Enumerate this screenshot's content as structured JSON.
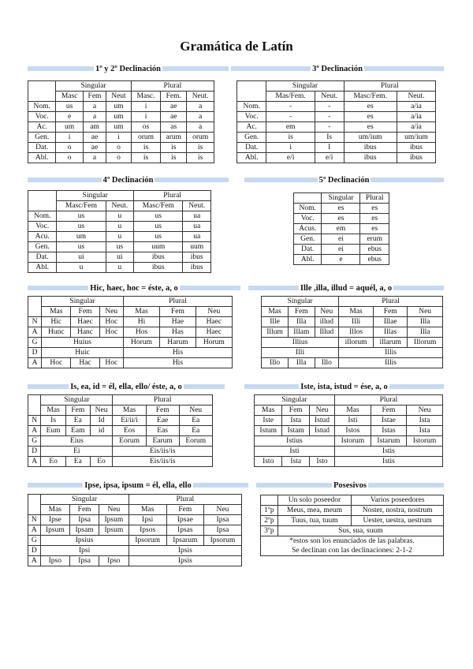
{
  "title": "Gramática de Latín",
  "header_bar_color": "#c6d9f1",
  "sections": [
    {
      "id": "decl-1-2",
      "heading": "1º y 2º Declinación",
      "rows": [
        [
          {
            "t": "",
            "rs": 2
          },
          {
            "t": "Singular",
            "span": 3
          },
          {
            "t": "Plural",
            "span": 3
          }
        ],
        [
          "Masc",
          "Fem",
          "Neut",
          "Masc.",
          "Fem.",
          "Neut."
        ],
        [
          "Nom.",
          "us",
          "a",
          "um",
          "i",
          "ae",
          "a"
        ],
        [
          "Voc.",
          "e",
          "a",
          "um",
          "i",
          "ae",
          "a"
        ],
        [
          "Ac.",
          "um",
          "am",
          "um",
          "os",
          "as",
          "a"
        ],
        [
          "Gen.",
          "i",
          "ae",
          "i",
          "orum",
          "arum",
          "orum"
        ],
        [
          "Dat.",
          "o",
          "ae",
          "o",
          "is",
          "is",
          "is"
        ],
        [
          "Abl.",
          "o",
          "a",
          "o",
          "is",
          "is",
          "is"
        ]
      ]
    },
    {
      "id": "decl-3",
      "heading": "3º Declinación",
      "rows": [
        [
          {
            "t": "",
            "rs": 2
          },
          {
            "t": "Singular",
            "span": 2
          },
          {
            "t": "Plural",
            "span": 2
          }
        ],
        [
          "Mas/Fem.",
          "Neut.",
          "Masc/Fem.",
          "Neut."
        ],
        [
          "Nom.",
          "-",
          "-",
          "es",
          "a/ia"
        ],
        [
          "Voc.",
          "-",
          "-",
          "es",
          "a/ia"
        ],
        [
          "Ac.",
          "em",
          "-",
          "es",
          "a/ia"
        ],
        [
          "Gen.",
          "is",
          "Is",
          "um/ium",
          "um/ium"
        ],
        [
          "Dat.",
          "i",
          "I",
          "ibus",
          "ibus"
        ],
        [
          "Abl.",
          "e/i",
          "e/i",
          "ibus",
          "ibus"
        ]
      ]
    },
    {
      "id": "decl-4",
      "heading": "4º Declinación",
      "rows": [
        [
          {
            "t": "",
            "rs": 2
          },
          {
            "t": "Singular",
            "span": 2
          },
          {
            "t": "Plural",
            "span": 2
          }
        ],
        [
          "Masc/Fem",
          "Neut.",
          "Masc/Fem",
          "Neut."
        ],
        [
          "Nom.",
          "us",
          "u",
          "us",
          "ua"
        ],
        [
          "Voc.",
          "us",
          "u",
          "us",
          "ua"
        ],
        [
          "Acu.",
          "um",
          "u",
          "us",
          "ua"
        ],
        [
          "Gen.",
          "us",
          "us",
          "uum",
          "uum"
        ],
        [
          "Dat.",
          "ui",
          "ui",
          "ibus",
          "ibus"
        ],
        [
          "Abl.",
          "u",
          "u",
          "ibus",
          "ibus"
        ]
      ]
    },
    {
      "id": "decl-5",
      "heading": "5º Declinación",
      "rows": [
        [
          "",
          "Singular",
          "Plural"
        ],
        [
          "Nom.",
          "es",
          "es"
        ],
        [
          "Voc.",
          "es",
          "es"
        ],
        [
          "Acus.",
          "em",
          "es"
        ],
        [
          "Gen.",
          "ei",
          "erum"
        ],
        [
          "Dat.",
          "ei",
          "ebus"
        ],
        [
          "Abl.",
          "e",
          "ebus"
        ]
      ]
    },
    {
      "id": "hic",
      "heading": "Hic, haec, hoc = éste, a, o",
      "rows": [
        [
          {
            "t": "",
            "rs": 2
          },
          {
            "t": "Singular",
            "span": 3
          },
          {
            "t": "Plural",
            "span": 3
          }
        ],
        [
          "Mas",
          "Fem",
          "Neu",
          "Mas",
          "Fem",
          "Neu"
        ],
        [
          "N",
          "Hic",
          "Haec",
          "Hoc",
          "Hi",
          "Hae",
          "Haec"
        ],
        [
          "A",
          "Hunc",
          "Hanc",
          "Hoc",
          "Hos",
          "Has",
          "Haec"
        ],
        [
          "G",
          {
            "t": "Huius",
            "span": 3
          },
          "Horum",
          "Harum",
          "Horum"
        ],
        [
          "D",
          {
            "t": "Huic",
            "span": 3
          },
          {
            "t": "His",
            "span": 3
          }
        ],
        [
          "A",
          "Hoc",
          "Hac",
          "Hoc",
          {
            "t": "His",
            "span": 3
          }
        ]
      ]
    },
    {
      "id": "ille",
      "heading": "Ille ,illa, illud = aquél, a, o",
      "rows": [
        [
          {
            "t": "Singular",
            "span": 3
          },
          {
            "t": "Plural",
            "span": 3
          }
        ],
        [
          "Mas",
          "Fem",
          "Neu",
          "Mas",
          "Fem",
          "Neu"
        ],
        [
          "Ille",
          "Illa",
          "illud",
          "Illi",
          "Illae",
          "Illa"
        ],
        [
          "Illum",
          "Illam",
          "Illud",
          "Illos",
          "Illas",
          "Illa"
        ],
        [
          {
            "t": "Illius",
            "span": 3
          },
          "illorum",
          "illarum",
          "Illorum"
        ],
        [
          {
            "t": "Illi",
            "span": 3
          },
          {
            "t": "Illis",
            "span": 3
          }
        ],
        [
          "Illo",
          "Illa",
          "Illo",
          {
            "t": "Illis",
            "span": 3
          }
        ]
      ]
    },
    {
      "id": "is",
      "heading": "Is, ea, id = él, ella, ello/ éste, a, o",
      "rows": [
        [
          {
            "t": "",
            "rs": 2
          },
          {
            "t": "Singular",
            "span": 3
          },
          {
            "t": "Plural",
            "span": 3
          }
        ],
        [
          "Mas",
          "Fem",
          "Neu",
          "Mas",
          "Fem",
          "Neu"
        ],
        [
          "N",
          "Is",
          "Ea",
          "Id",
          "Ei/ii/i",
          "Eae",
          "Ea"
        ],
        [
          "A",
          "Eum",
          "Eam",
          "id",
          "Eos",
          "Eas",
          "Ea"
        ],
        [
          "G",
          {
            "t": "Eius",
            "span": 3
          },
          "Eorum",
          "Earum",
          "Eorum"
        ],
        [
          "D",
          {
            "t": "Ei",
            "span": 3
          },
          {
            "t": "Eis/iis/is",
            "span": 3
          }
        ],
        [
          "A",
          "Eo",
          "Ea",
          "Eo",
          {
            "t": "Eis/iis/is",
            "span": 3
          }
        ]
      ]
    },
    {
      "id": "iste",
      "heading": "Iste, ista, istud = ése, a, o",
      "rows": [
        [
          {
            "t": "Singular",
            "span": 3
          },
          {
            "t": "Plural",
            "span": 3
          }
        ],
        [
          "Mas",
          "Fem",
          "Neu",
          "Mas",
          "Fem",
          "Neu"
        ],
        [
          "Iste",
          "Ista",
          "Istud",
          "Isti",
          "Istae",
          "Ista"
        ],
        [
          "Istum",
          "Istam",
          "Istud",
          "Istos",
          "Istas",
          "Ista"
        ],
        [
          {
            "t": "Istius",
            "span": 3
          },
          "Istorum",
          "Istarum",
          "Istorum"
        ],
        [
          {
            "t": "Isti",
            "span": 3
          },
          {
            "t": "Istis",
            "span": 3
          }
        ],
        [
          "Isto",
          "Ista",
          "Isto",
          {
            "t": "Istis",
            "span": 3
          }
        ]
      ]
    },
    {
      "id": "ipse",
      "heading": "Ipse, ipsa, ipsum = él, ella, ello",
      "rows": [
        [
          {
            "t": "",
            "rs": 2
          },
          {
            "t": "Singular",
            "span": 3
          },
          {
            "t": "Plural",
            "span": 3
          }
        ],
        [
          "Mas",
          "Fem",
          "Neu",
          "Mas",
          "Fem",
          "Neu"
        ],
        [
          "N",
          "Ipse",
          "Ipsa",
          "Ipsum",
          "Ipsi",
          "Ipsae",
          "Ipsa"
        ],
        [
          "A",
          "Ipsum",
          "Ipsam",
          "Ipsum",
          "Ipsos",
          "Ipsas",
          "Ipsa"
        ],
        [
          "G",
          {
            "t": "Ipsius",
            "span": 3
          },
          "Ipsorum",
          "Ipsarum",
          "Ipsorum"
        ],
        [
          "D",
          {
            "t": "Ipsi",
            "span": 3
          },
          {
            "t": "Ipsis",
            "span": 3
          }
        ],
        [
          "A",
          "Ipso",
          "Ipsa",
          "Ipso",
          {
            "t": "Ipsis",
            "span": 3
          }
        ]
      ]
    },
    {
      "id": "posesivos",
      "heading": "Posesivos",
      "rows": [
        [
          "",
          "Un solo poseedor",
          "Varios poseedores"
        ],
        [
          "1ºp",
          "Meus, mea, meum",
          "Noster, nostra, nostrum"
        ],
        [
          "2ºp",
          "Tuus, tua, tuum",
          "Uester, uestra, uestrum"
        ],
        [
          "3ºp",
          {
            "t": "Sus, sua, suum",
            "span": 2
          }
        ],
        [
          {
            "t": "*estos son los enunciados de las palabras.",
            "span": 3
          }
        ],
        [
          {
            "t": "Se declinan con las declinaciones: 2-1-2",
            "span": 3
          }
        ]
      ]
    }
  ]
}
